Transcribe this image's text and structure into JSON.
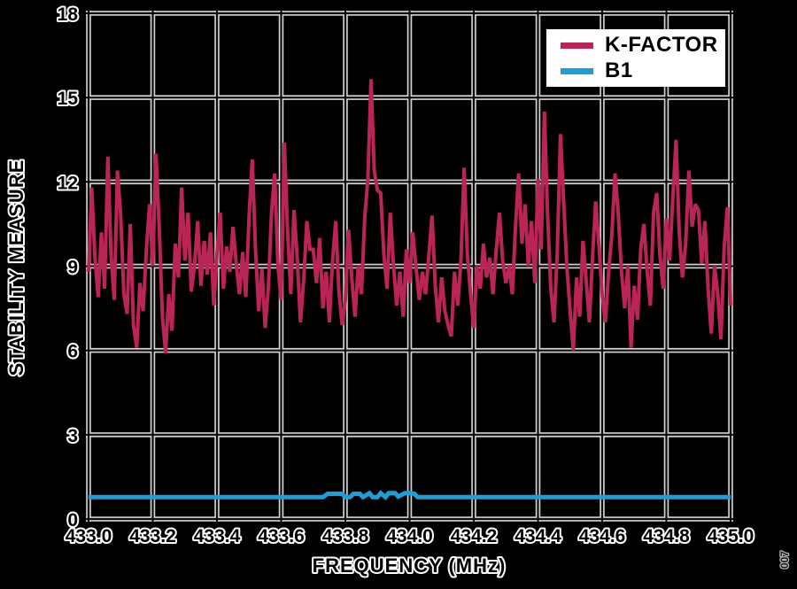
{
  "figure_number": "007",
  "chart_data": {
    "type": "line",
    "title": "",
    "xlabel": "FREQUENCY (MHz)",
    "ylabel": "STABILITY MEASURE",
    "xlim": [
      433.0,
      435.0
    ],
    "ylim": [
      0,
      18
    ],
    "x_ticks": [
      "433.0",
      "433.2",
      "433.4",
      "433.6",
      "433.8",
      "434.0",
      "434.2",
      "434.4",
      "434.6",
      "434.8",
      "435.0"
    ],
    "y_ticks": [
      0,
      3,
      6,
      9,
      12,
      15,
      18
    ],
    "grid": true,
    "grid_color": "#d4d4d4",
    "background_color": "#000000",
    "legend_position": "top-right",
    "legend_background": "#ffffff",
    "series": [
      {
        "name": "K-FACTOR",
        "color": "#BB2457",
        "width": 4,
        "x_start": 433.0,
        "x_step": 0.01,
        "values": [
          8.8,
          11.8,
          9.3,
          7.9,
          10.2,
          8.2,
          12.9,
          9.4,
          7.8,
          12.4,
          10.8,
          8.0,
          7.3,
          10.5,
          6.9,
          6.1,
          8.4,
          7.4,
          9.6,
          11.2,
          9.0,
          13.0,
          10.4,
          7.2,
          5.9,
          8.0,
          6.7,
          9.8,
          8.6,
          11.8,
          9.2,
          10.9,
          8.1,
          9.0,
          10.6,
          8.3,
          9.9,
          8.7,
          10.2,
          7.6,
          9.4,
          10.9,
          8.2,
          9.7,
          8.8,
          10.4,
          9.1,
          8.0,
          9.5,
          7.9,
          10.8,
          12.8,
          9.6,
          7.4,
          8.9,
          6.8,
          8.2,
          10.9,
          12.3,
          9.0,
          7.8,
          13.4,
          10.2,
          8.0,
          11.0,
          9.3,
          7.0,
          8.5,
          10.6,
          9.6,
          9.6,
          8.4,
          10.0,
          7.5,
          8.8,
          7.0,
          9.2,
          10.6,
          8.1,
          6.9,
          7.8,
          10.3,
          8.6,
          7.2,
          9.0,
          8.0,
          10.7,
          12.1,
          15.65,
          12.4,
          11.7,
          11.6,
          9.4,
          8.2,
          10.9,
          9.0,
          7.6,
          8.8,
          7.2,
          9.6,
          8.4,
          10.2,
          9.0,
          7.8,
          8.8,
          8.0,
          9.4,
          10.8,
          8.3,
          7.0,
          8.6,
          7.4,
          6.9,
          6.5,
          8.8,
          7.6,
          9.2,
          12.5,
          9.4,
          8.0,
          6.8,
          9.0,
          8.2,
          9.8,
          8.6,
          9.3,
          8.0,
          9.6,
          10.9,
          9.2,
          8.4,
          9.0,
          8.0,
          10.4,
          12.3,
          9.8,
          11.2,
          9.0,
          10.6,
          8.4,
          12.1,
          9.6,
          14.5,
          10.8,
          8.2,
          7.0,
          9.4,
          13.7,
          11.3,
          9.0,
          7.4,
          6.0,
          8.6,
          7.2,
          9.9,
          8.5,
          7.0,
          9.3,
          11.3,
          9.7,
          8.0,
          7.0,
          8.8,
          10.1,
          12.3,
          10.9,
          8.8,
          7.5,
          9.0,
          6.1,
          8.3,
          7.1,
          9.6,
          10.5,
          8.8,
          7.6,
          10.9,
          11.6,
          9.4,
          8.2,
          10.7,
          9.2,
          11.4,
          13.5,
          10.2,
          8.6,
          9.8,
          12.4,
          10.4,
          11.2,
          11.0,
          9.1,
          10.6,
          8.2,
          6.6,
          9.0,
          8.0,
          6.4,
          9.7,
          11.1,
          7.6
        ]
      },
      {
        "name": "B1",
        "color": "#1E9ED9",
        "width": 5,
        "x": [
          433.0,
          433.73,
          433.745,
          433.755,
          433.79,
          433.8,
          433.815,
          433.825,
          433.845,
          433.855,
          433.875,
          433.885,
          433.9,
          433.91,
          433.925,
          433.935,
          433.955,
          433.965,
          433.985,
          434.0,
          434.015,
          434.025,
          435.0
        ],
        "values": [
          0.78,
          0.78,
          0.9,
          0.9,
          0.9,
          0.78,
          0.78,
          0.9,
          0.9,
          0.78,
          0.92,
          0.78,
          0.78,
          0.92,
          0.78,
          0.92,
          0.92,
          0.8,
          0.92,
          0.92,
          0.9,
          0.78,
          0.78
        ]
      }
    ]
  }
}
